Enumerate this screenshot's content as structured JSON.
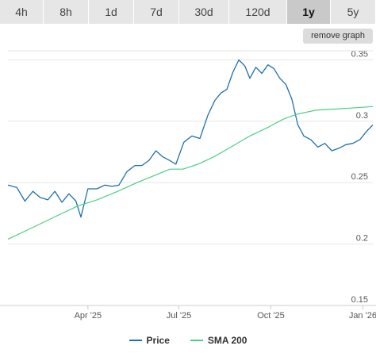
{
  "tabs": [
    {
      "label": "4h",
      "active": false
    },
    {
      "label": "8h",
      "active": false
    },
    {
      "label": "1d",
      "active": false
    },
    {
      "label": "7d",
      "active": false
    },
    {
      "label": "30d",
      "active": false
    },
    {
      "label": "120d",
      "active": false
    },
    {
      "label": "1y",
      "active": true
    },
    {
      "label": "5y",
      "active": false
    }
  ],
  "remove_graph_label": "remove graph",
  "colors": {
    "price": "#1f6fab",
    "sma": "#4ccf86",
    "grid": "#e6e6e6",
    "axis_text": "#555555"
  },
  "chart_data": {
    "type": "line",
    "x_tick_labels": [
      "Apr '25",
      "Jul '25",
      "Oct '25",
      "Jan '26"
    ],
    "x_tick_dates": [
      "2025-04-01",
      "2025-07-01",
      "2025-10-01",
      "2026-01-01"
    ],
    "y_ticks": [
      0.15,
      0.2,
      0.25,
      0.3,
      0.35
    ],
    "y_tick_labels": [
      "0.15",
      "0.2",
      "0.25",
      "0.3",
      "0.35"
    ],
    "ylim": [
      0.15,
      0.36
    ],
    "xlim": [
      "2025-01-11",
      "2026-01-11"
    ],
    "grid": true,
    "legend": "bottom",
    "series": [
      {
        "name": "Price",
        "x": [
          "2025-01-11",
          "2025-01-20",
          "2025-01-28",
          "2025-02-05",
          "2025-02-12",
          "2025-02-20",
          "2025-02-27",
          "2025-03-06",
          "2025-03-13",
          "2025-03-20",
          "2025-03-25",
          "2025-04-01",
          "2025-04-10",
          "2025-04-18",
          "2025-04-25",
          "2025-05-02",
          "2025-05-10",
          "2025-05-18",
          "2025-05-25",
          "2025-06-01",
          "2025-06-08",
          "2025-06-15",
          "2025-06-22",
          "2025-06-28",
          "2025-07-06",
          "2025-07-14",
          "2025-07-22",
          "2025-07-30",
          "2025-08-06",
          "2025-08-12",
          "2025-08-18",
          "2025-08-24",
          "2025-08-30",
          "2025-09-05",
          "2025-09-10",
          "2025-09-16",
          "2025-09-22",
          "2025-09-28",
          "2025-10-04",
          "2025-10-10",
          "2025-10-16",
          "2025-10-22",
          "2025-10-28",
          "2025-11-03",
          "2025-11-10",
          "2025-11-17",
          "2025-11-24",
          "2025-12-01",
          "2025-12-08",
          "2025-12-15",
          "2025-12-22",
          "2025-12-29",
          "2026-01-05",
          "2026-01-11"
        ],
        "values": [
          0.248,
          0.246,
          0.235,
          0.243,
          0.238,
          0.236,
          0.243,
          0.234,
          0.241,
          0.235,
          0.222,
          0.245,
          0.245,
          0.248,
          0.247,
          0.248,
          0.259,
          0.264,
          0.264,
          0.268,
          0.276,
          0.271,
          0.268,
          0.265,
          0.283,
          0.288,
          0.286,
          0.305,
          0.317,
          0.323,
          0.326,
          0.34,
          0.35,
          0.345,
          0.335,
          0.344,
          0.339,
          0.346,
          0.343,
          0.335,
          0.33,
          0.318,
          0.297,
          0.288,
          0.285,
          0.279,
          0.282,
          0.276,
          0.278,
          0.281,
          0.282,
          0.285,
          0.292,
          0.297
        ]
      },
      {
        "name": "SMA 200",
        "x": [
          "2025-01-11",
          "2025-02-01",
          "2025-03-01",
          "2025-03-22",
          "2025-04-10",
          "2025-05-01",
          "2025-05-20",
          "2025-06-10",
          "2025-06-22",
          "2025-07-05",
          "2025-07-20",
          "2025-08-05",
          "2025-08-22",
          "2025-09-10",
          "2025-09-28",
          "2025-10-14",
          "2025-10-28",
          "2025-11-15",
          "2025-12-05",
          "2025-12-25",
          "2026-01-11"
        ],
        "values": [
          0.204,
          0.212,
          0.223,
          0.231,
          0.236,
          0.243,
          0.25,
          0.257,
          0.261,
          0.261,
          0.265,
          0.271,
          0.279,
          0.288,
          0.295,
          0.302,
          0.306,
          0.309,
          0.31,
          0.311,
          0.312
        ]
      }
    ]
  }
}
